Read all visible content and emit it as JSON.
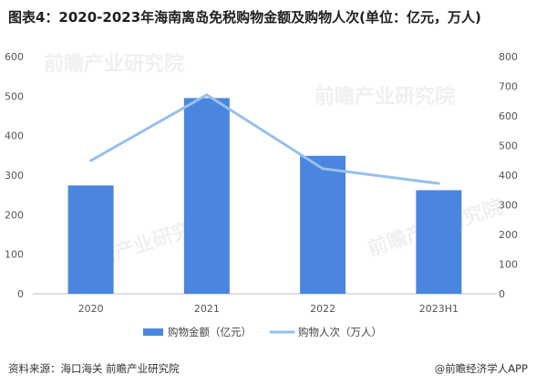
{
  "header": {
    "title": "图表4：2020-2023年海南离岛免税购物金额及购物人次(单位：亿元，万人)"
  },
  "footer": {
    "source": "资料来源：海口海关 前瞻产业研究院",
    "brand": "@前瞻经济学人APP"
  },
  "watermark": {
    "text": "前瞻产业研究院"
  },
  "chart_data": {
    "type": "bar",
    "title": "图表4：2020-2023年海南离岛免税购物金额及购物人次(单位：亿元，万人)",
    "categories": [
      "2020",
      "2021",
      "2022",
      "2023H1"
    ],
    "series": [
      {
        "name": "购物金额（亿元）",
        "type": "bar",
        "axis": "left",
        "values": [
          274,
          495,
          349,
          262
        ],
        "color": "#4a86e0"
      },
      {
        "name": "购物人次（万人）",
        "type": "line",
        "axis": "right",
        "values": [
          449,
          671,
          422,
          372
        ],
        "color": "#97c0ec"
      }
    ],
    "yleft": {
      "ylim": [
        0,
        600
      ],
      "ticks": [
        "0",
        "100",
        "200",
        "300",
        "400",
        "500",
        "600"
      ]
    },
    "yright": {
      "ylim": [
        0,
        800
      ],
      "ticks": [
        "0",
        "100",
        "200",
        "300",
        "400",
        "500",
        "600",
        "700",
        "800"
      ]
    },
    "xlabel": "",
    "ylabel": "",
    "grid": false,
    "legend_position": "bottom"
  }
}
